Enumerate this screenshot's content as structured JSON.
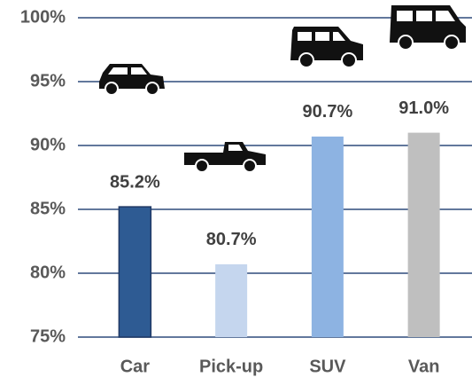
{
  "chart_data": {
    "type": "bar",
    "categories": [
      "Car",
      "Pick-up",
      "SUV",
      "Van"
    ],
    "values": [
      85.2,
      80.7,
      90.7,
      91.0
    ],
    "value_labels": [
      "85.2%",
      "80.7%",
      "90.7%",
      "91.0%"
    ],
    "colors": [
      "#2e5b93",
      "#c5d6ee",
      "#8db3e2",
      "#bfbfbf"
    ],
    "ylim": [
      75,
      100
    ],
    "yticks": [
      {
        "value": 75,
        "label": "75%"
      },
      {
        "value": 80,
        "label": "80%"
      },
      {
        "value": 85,
        "label": "85%"
      },
      {
        "value": 90,
        "label": "90%"
      },
      {
        "value": 95,
        "label": "95%"
      },
      {
        "value": 100,
        "label": "100%"
      }
    ],
    "grid": true
  }
}
